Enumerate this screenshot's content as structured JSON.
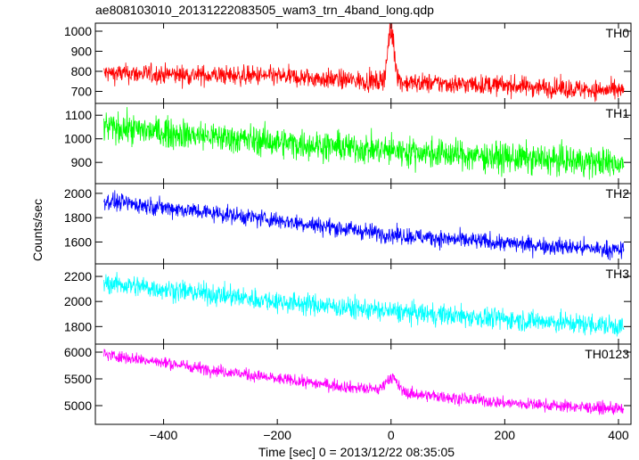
{
  "figure": {
    "title": "ae808103010_20131222083505_wam3_trn_4band_long.qdp",
    "xlabel": "Time [sec] 0 = 2013/12/22 08:35:05",
    "ylabel": "Counts/sec"
  },
  "chart_data": {
    "type": "line",
    "shared_x": true,
    "xlim": [
      -520,
      422
    ],
    "xticks": [
      -400,
      -200,
      0,
      200,
      400
    ],
    "x_tick_labels": [
      "−400",
      "−200",
      "0",
      "200",
      "400"
    ],
    "panels": [
      {
        "name": "TH0",
        "color": "#ff0000",
        "ylim": [
          640,
          1040
        ],
        "yticks": [
          700,
          800,
          900,
          1000
        ],
        "trend": [
          [
            -505,
            790
          ],
          [
            -200,
            775
          ],
          [
            0,
            745
          ],
          [
            200,
            730
          ],
          [
            410,
            700
          ]
        ],
        "noise": 35,
        "spike": {
          "x": 0,
          "peak": 1040,
          "width": 6
        }
      },
      {
        "name": "TH1",
        "color": "#00ff00",
        "ylim": [
          810,
          1150
        ],
        "yticks": [
          900,
          1000,
          1100
        ],
        "trend": [
          [
            -505,
            1050
          ],
          [
            -200,
            985
          ],
          [
            0,
            950
          ],
          [
            200,
            920
          ],
          [
            410,
            895
          ]
        ],
        "noise": 45,
        "spike": null
      },
      {
        "name": "TH2",
        "color": "#0000ff",
        "ylim": [
          1420,
          2080
        ],
        "yticks": [
          1600,
          1800,
          2000
        ],
        "trend": [
          [
            -505,
            1940
          ],
          [
            -200,
            1780
          ],
          [
            0,
            1660
          ],
          [
            200,
            1590
          ],
          [
            410,
            1530
          ]
        ],
        "noise": 50,
        "spike": null
      },
      {
        "name": "TH3",
        "color": "#00ffff",
        "ylim": [
          1660,
          2300
        ],
        "yticks": [
          1800,
          2000,
          2200
        ],
        "trend": [
          [
            -505,
            2150
          ],
          [
            -200,
            2000
          ],
          [
            0,
            1920
          ],
          [
            200,
            1860
          ],
          [
            410,
            1800
          ]
        ],
        "noise": 60,
        "spike": null
      },
      {
        "name": "TH0123",
        "color": "#ff00ff",
        "ylim": [
          4650,
          6150
        ],
        "yticks": [
          5000,
          5500,
          6000
        ],
        "trend": [
          [
            -505,
            5960
          ],
          [
            -200,
            5500
          ],
          [
            0,
            5260
          ],
          [
            200,
            5050
          ],
          [
            410,
            4930
          ]
        ],
        "noise": 80,
        "spike": {
          "x": 0,
          "peak": 5580,
          "width": 10
        }
      }
    ]
  }
}
